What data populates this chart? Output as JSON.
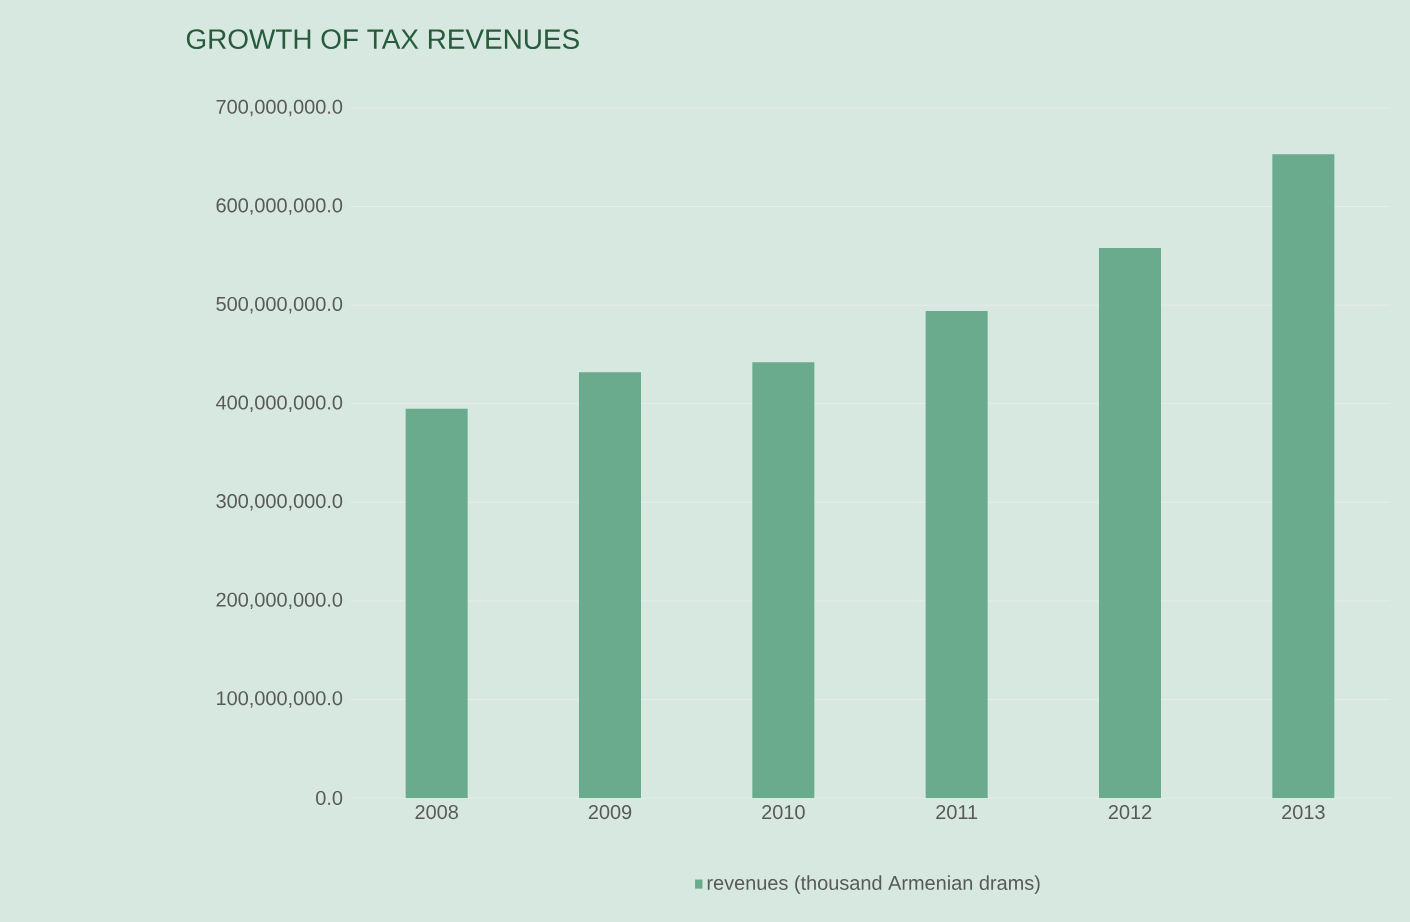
{
  "chart_data": {
    "type": "bar",
    "title": "GROWTH OF TAX REVENUES",
    "categories": [
      "2008",
      "2009",
      "2010",
      "2011",
      "2012",
      "2013"
    ],
    "series": [
      {
        "name": "revenues (thousand Armenian drams)",
        "color": "#6aab8e",
        "values": [
          395000000,
          432000000,
          442000000,
          494000000,
          558000000,
          653000000
        ]
      }
    ],
    "ylim": [
      0,
      700000000
    ],
    "yticks": [
      {
        "value": 0,
        "label": "0.0"
      },
      {
        "value": 100000000,
        "label": "100,000,000.0"
      },
      {
        "value": 200000000,
        "label": "200,000,000.0"
      },
      {
        "value": 300000000,
        "label": "300,000,000.0"
      },
      {
        "value": 400000000,
        "label": "400,000,000.0"
      },
      {
        "value": 500000000,
        "label": "500,000,000.0"
      },
      {
        "value": 600000000,
        "label": "600,000,000.0"
      },
      {
        "value": 700000000,
        "label": "700,000,000.0"
      }
    ],
    "grid": "y",
    "legend": "bottom"
  }
}
